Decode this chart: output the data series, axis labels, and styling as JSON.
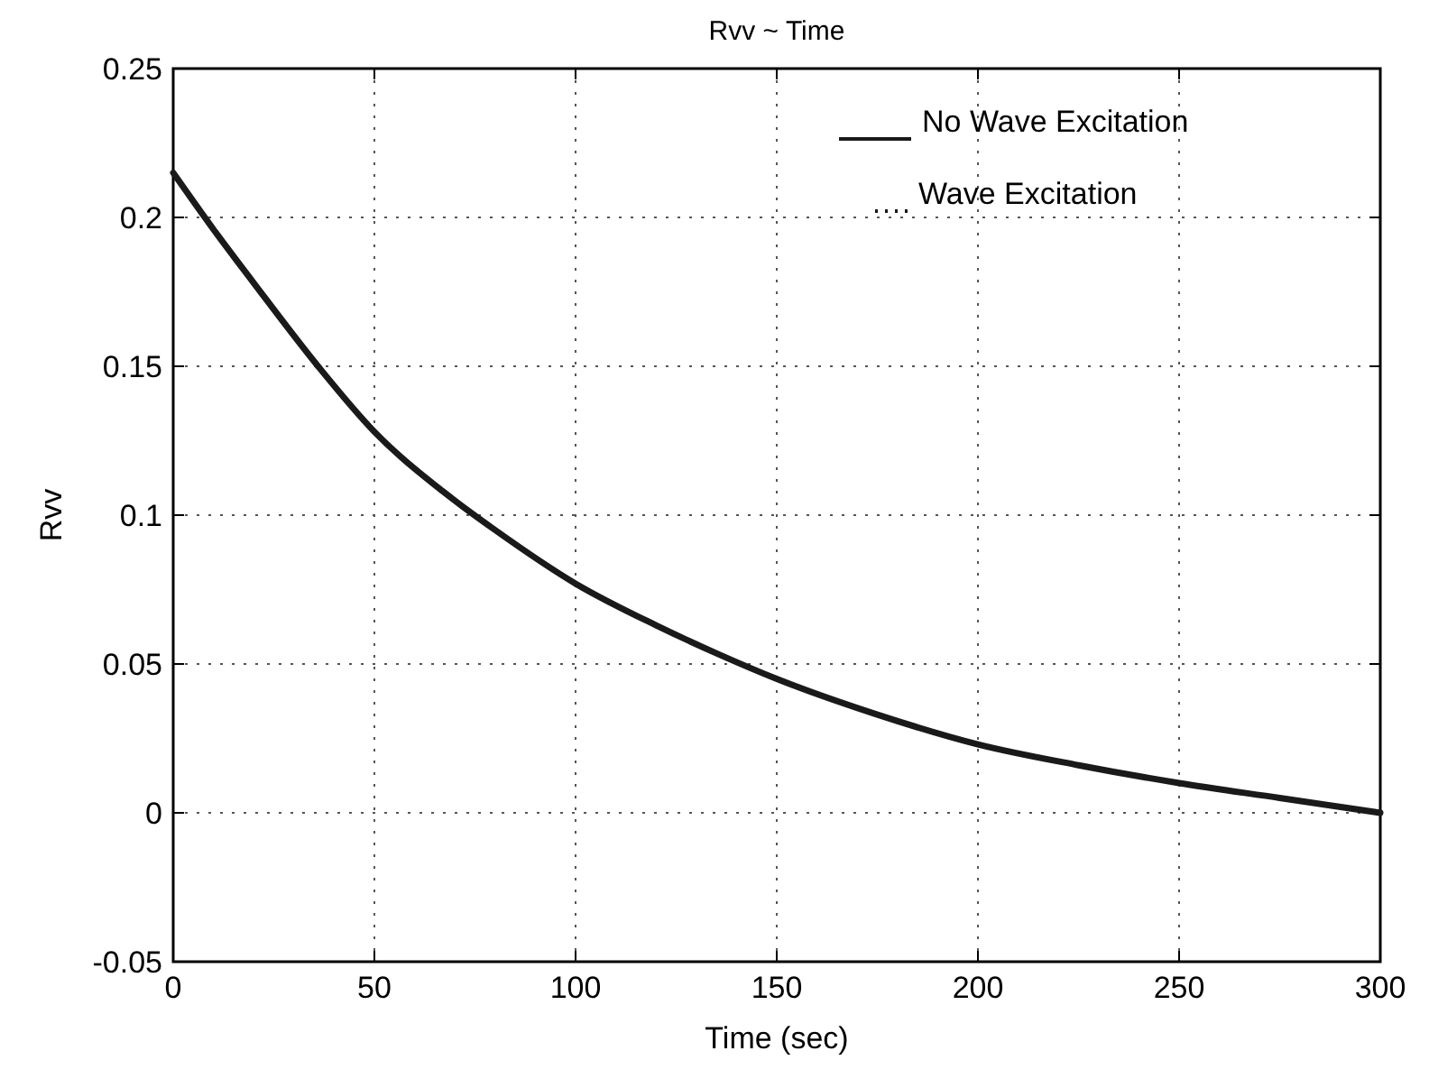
{
  "chart_data": {
    "type": "line",
    "title": "Rvv ~ Time",
    "xlabel": "Time (sec)",
    "ylabel": "Rvv",
    "x": [
      0,
      10,
      20,
      36,
      50,
      67,
      80,
      100,
      120,
      136,
      150,
      175,
      200,
      225,
      250,
      275,
      300
    ],
    "series": [
      {
        "name": "No Wave Excitation",
        "color": "#1a1a1a",
        "line_style": "solid",
        "values": [
          0.215,
          0.196,
          0.178,
          0.15,
          0.128,
          0.108,
          0.095,
          0.077,
          0.063,
          0.053,
          0.045,
          0.033,
          0.023,
          0.016,
          0.01,
          0.005,
          0
        ]
      },
      {
        "name": "Wave Excitation",
        "color": "#1a1a1a",
        "line_style": "dotted",
        "values": [
          null,
          null,
          null,
          null,
          null,
          null,
          null,
          null,
          null,
          null,
          null,
          null,
          null,
          null,
          null,
          null,
          null
        ]
      }
    ],
    "xlim": [
      0,
      300
    ],
    "xticks": [
      0,
      50,
      100,
      150,
      200,
      250,
      300
    ],
    "ylim": [
      -0.05,
      0.25
    ],
    "yticks": [
      -0.05,
      0,
      0.05,
      0.1,
      0.15,
      0.2,
      0.25
    ],
    "grid": true,
    "legend": "top right"
  }
}
